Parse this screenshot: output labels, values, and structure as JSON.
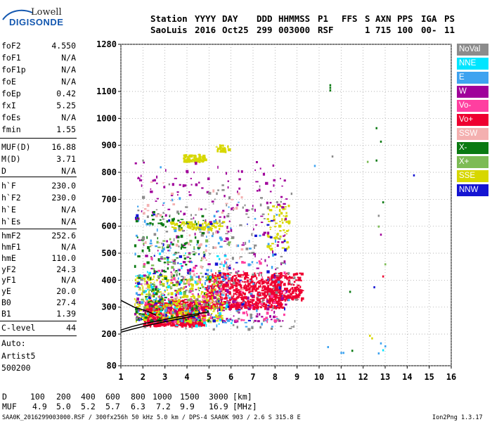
{
  "logo": {
    "top": "Lowell",
    "bottom": "DIGISONDE"
  },
  "header": {
    "row1": [
      "Station",
      "YYYY",
      "DAY",
      "DDD",
      "HHMMSS",
      "P1",
      "FFS",
      "S",
      "AXN",
      "PPS",
      "IGA",
      "PS"
    ],
    "row2": [
      "SaoLuis",
      "2016",
      "Oct25",
      "299",
      "003000",
      "RSF",
      "",
      "1",
      "715",
      "100",
      "00-",
      "11"
    ]
  },
  "params": [
    {
      "key": "foF2",
      "value": "4.550"
    },
    {
      "key": "foF1",
      "value": "N/A"
    },
    {
      "key": "foF1p",
      "value": "N/A"
    },
    {
      "key": "foE",
      "value": "N/A"
    },
    {
      "key": "foEp",
      "value": "0.42"
    },
    {
      "key": "fxI",
      "value": "5.25"
    },
    {
      "key": "foEs",
      "value": "N/A"
    },
    {
      "key": "fmin",
      "value": "1.55"
    },
    {
      "key": "MUF(D)",
      "value": "16.88"
    },
    {
      "key": "M(D)",
      "value": "3.71"
    },
    {
      "key": "D",
      "value": "N/A"
    },
    {
      "key": "h`F",
      "value": "230.0"
    },
    {
      "key": "h`F2",
      "value": "230.0"
    },
    {
      "key": "h`E",
      "value": "N/A"
    },
    {
      "key": "h`Es",
      "value": "N/A"
    },
    {
      "key": "hmF2",
      "value": "252.6"
    },
    {
      "key": "hmF1",
      "value": "N/A"
    },
    {
      "key": "hmE",
      "value": "110.0"
    },
    {
      "key": "yF2",
      "value": "24.3"
    },
    {
      "key": "yF1",
      "value": "N/A"
    },
    {
      "key": "yE",
      "value": "20.0"
    },
    {
      "key": "B0",
      "value": "27.4"
    },
    {
      "key": "B1",
      "value": "1.39"
    },
    {
      "key": "C-level",
      "value": "44"
    }
  ],
  "auto": [
    "Auto:",
    "Artist5",
    "500200"
  ],
  "legend": [
    {
      "label": "NoVal",
      "color": "#8c8c8c"
    },
    {
      "label": "NNE",
      "color": "#00e5ff"
    },
    {
      "label": "E",
      "color": "#3ea3f0"
    },
    {
      "label": "W",
      "color": "#a0009a"
    },
    {
      "label": "Vo-",
      "color": "#ff3fa0"
    },
    {
      "label": "Vo+",
      "color": "#ee0030"
    },
    {
      "label": "SSW",
      "color": "#f4b0b0"
    },
    {
      "label": "X-",
      "color": "#0a7a12"
    },
    {
      "label": "X+",
      "color": "#7dbb55"
    },
    {
      "label": "SSE",
      "color": "#d7d700"
    },
    {
      "label": "NNW",
      "color": "#1414d2"
    }
  ],
  "footer": {
    "d_label": "D",
    "d_values": [
      "100",
      "200",
      "400",
      "600",
      "800",
      "1000",
      "1500",
      "3000"
    ],
    "d_unit": "[km]",
    "muf_label": "MUF",
    "muf_values": [
      "4.9",
      "5.0",
      "5.2",
      "5.7",
      "6.3",
      "7.2",
      "9.9",
      "16.9"
    ],
    "muf_unit": "[MHz]",
    "file_info": "SAA0K_2016299003000.RSF / 300fx256h 50 kHz 5.0 km / DPS-4 SAA0K 903 / 2.6 S 315.8 E",
    "version": "Ion2Png 1.3.17"
  },
  "chart_data": {
    "type": "scatter",
    "title": "",
    "xlabel": "",
    "ylabel": "",
    "x_ticks": [
      1,
      2,
      3,
      4,
      5,
      6,
      7,
      8,
      9,
      10,
      11,
      12,
      13,
      14,
      15,
      16
    ],
    "y_ticks": [
      80,
      200,
      300,
      400,
      500,
      600,
      700,
      800,
      900,
      1000,
      1100,
      1280
    ],
    "xlim": [
      1,
      16
    ],
    "ylim": [
      80,
      1280
    ],
    "grid": true,
    "legend_position": "right",
    "clusters": [
      {
        "name": "Vo+",
        "color": "#ee0030",
        "fmin": 2.0,
        "fmax": 4.8,
        "hmin": 235,
        "hmax": 330,
        "n": 620
      },
      {
        "name": "Vo+",
        "color": "#ee0030",
        "fmin": 4.8,
        "fmax": 8.3,
        "hmin": 300,
        "hmax": 430,
        "n": 650
      },
      {
        "name": "Vo+",
        "color": "#ee0030",
        "fmin": 7.7,
        "fmax": 9.2,
        "hmin": 330,
        "hmax": 430,
        "n": 190
      },
      {
        "name": "SSE",
        "color": "#d7d700",
        "fmin": 1.6,
        "fmax": 5.6,
        "hmin": 250,
        "hmax": 420,
        "n": 380
      },
      {
        "name": "SSE",
        "color": "#d7d700",
        "fmin": 3.2,
        "fmax": 5.6,
        "hmin": 590,
        "hmax": 620,
        "n": 90
      },
      {
        "name": "SSE",
        "color": "#d7d700",
        "fmin": 3.8,
        "fmax": 4.8,
        "hmin": 845,
        "hmax": 870,
        "n": 70
      },
      {
        "name": "SSE",
        "color": "#d7d700",
        "fmin": 5.3,
        "fmax": 5.9,
        "hmin": 880,
        "hmax": 905,
        "n": 25
      },
      {
        "name": "SSE",
        "color": "#d7d700",
        "fmin": 7.6,
        "fmax": 8.6,
        "hmin": 520,
        "hmax": 680,
        "n": 70
      },
      {
        "name": "W",
        "color": "#a0009a",
        "fmin": 1.6,
        "fmax": 8.5,
        "hmin": 250,
        "hmax": 850,
        "n": 300
      },
      {
        "name": "E",
        "color": "#3ea3f0",
        "fmin": 1.6,
        "fmax": 8.6,
        "hmin": 230,
        "hmax": 720,
        "n": 130
      },
      {
        "name": "X-",
        "color": "#0a7a12",
        "fmin": 1.6,
        "fmax": 5.0,
        "hmin": 250,
        "hmax": 660,
        "n": 160
      },
      {
        "name": "X+",
        "color": "#7dbb55",
        "fmin": 1.8,
        "fmax": 6.0,
        "hmin": 300,
        "hmax": 560,
        "n": 90
      },
      {
        "name": "NNE",
        "color": "#00e5ff",
        "fmin": 1.6,
        "fmax": 6.0,
        "hmin": 230,
        "hmax": 520,
        "n": 70
      },
      {
        "name": "NoVal",
        "color": "#8c8c8c",
        "fmin": 1.6,
        "fmax": 9.0,
        "hmin": 220,
        "hmax": 760,
        "n": 170
      },
      {
        "name": "NNW",
        "color": "#1414d2",
        "fmin": 1.6,
        "fmax": 8.5,
        "hmin": 250,
        "hmax": 650,
        "n": 70
      },
      {
        "name": "Vo-",
        "color": "#ff3fa0",
        "fmin": 2.0,
        "fmax": 8.5,
        "hmin": 250,
        "hmax": 500,
        "n": 80
      },
      {
        "name": "SSW",
        "color": "#f4b0b0",
        "fmin": 2.0,
        "fmax": 6.5,
        "hmin": 320,
        "hmax": 780,
        "n": 80
      }
    ],
    "scattered_points": [
      {
        "x": 10.5,
        "y": 1115,
        "color": "#0a7a12"
      },
      {
        "x": 10.5,
        "y": 1125,
        "color": "#0a7a12"
      },
      {
        "x": 10.5,
        "y": 1105,
        "color": "#0a7a12"
      },
      {
        "x": 12.6,
        "y": 965,
        "color": "#0a7a12"
      },
      {
        "x": 12.8,
        "y": 915,
        "color": "#0a7a12"
      },
      {
        "x": 12.6,
        "y": 845,
        "color": "#0a7a12"
      },
      {
        "x": 12.9,
        "y": 690,
        "color": "#0a7a12"
      },
      {
        "x": 14.3,
        "y": 790,
        "color": "#1414d2"
      },
      {
        "x": 12.2,
        "y": 840,
        "color": "#7dbb55"
      },
      {
        "x": 9.8,
        "y": 825,
        "color": "#3ea3f0"
      },
      {
        "x": 12.7,
        "y": 640,
        "color": "#8c8c8c"
      },
      {
        "x": 12.7,
        "y": 600,
        "color": "#7dbb55"
      },
      {
        "x": 12.8,
        "y": 570,
        "color": "#a0009a"
      },
      {
        "x": 12.9,
        "y": 415,
        "color": "#ee0030"
      },
      {
        "x": 12.5,
        "y": 375,
        "color": "#1414d2"
      },
      {
        "x": 13.0,
        "y": 460,
        "color": "#7dbb55"
      },
      {
        "x": 11.4,
        "y": 358,
        "color": "#0a7a12"
      },
      {
        "x": 12.3,
        "y": 195,
        "color": "#d7d700"
      },
      {
        "x": 12.4,
        "y": 185,
        "color": "#d7d700"
      },
      {
        "x": 10.4,
        "y": 152,
        "color": "#3ea3f0"
      },
      {
        "x": 11.0,
        "y": 130,
        "color": "#3ea3f0"
      },
      {
        "x": 11.1,
        "y": 130,
        "color": "#3ea3f0"
      },
      {
        "x": 11.5,
        "y": 138,
        "color": "#0a7a12"
      },
      {
        "x": 12.7,
        "y": 128,
        "color": "#3ea3f0"
      },
      {
        "x": 12.9,
        "y": 140,
        "color": "#00e5ff"
      },
      {
        "x": 13.0,
        "y": 155,
        "color": "#3ea3f0"
      },
      {
        "x": 12.8,
        "y": 166,
        "color": "#3ea3f0"
      },
      {
        "x": 10.6,
        "y": 860,
        "color": "#8c8c8c"
      },
      {
        "x": 2.8,
        "y": 820,
        "color": "#3ea3f0"
      },
      {
        "x": 2.0,
        "y": 845,
        "color": "#8c8c8c"
      }
    ],
    "profile_curves": [
      {
        "name": "O-trace",
        "color": "#000000",
        "x": [
          1.0,
          1.5,
          2.0,
          2.5,
          3.0,
          3.5,
          4.0,
          4.55
        ],
        "y": [
          207,
          218,
          228,
          237,
          246,
          254,
          262,
          272
        ]
      },
      {
        "name": "X-trace",
        "color": "#000000",
        "x": [
          1.0,
          1.5,
          2.0,
          2.5,
          3.0,
          3.5,
          4.0,
          4.5,
          5.0
        ],
        "y": [
          215,
          228,
          238,
          246,
          254,
          262,
          270,
          276,
          282
        ]
      },
      {
        "name": "virtual",
        "color": "#000000",
        "x": [
          1.0,
          1.6,
          2.2,
          2.6
        ],
        "y": [
          325,
          300,
          285,
          270
        ]
      }
    ]
  }
}
